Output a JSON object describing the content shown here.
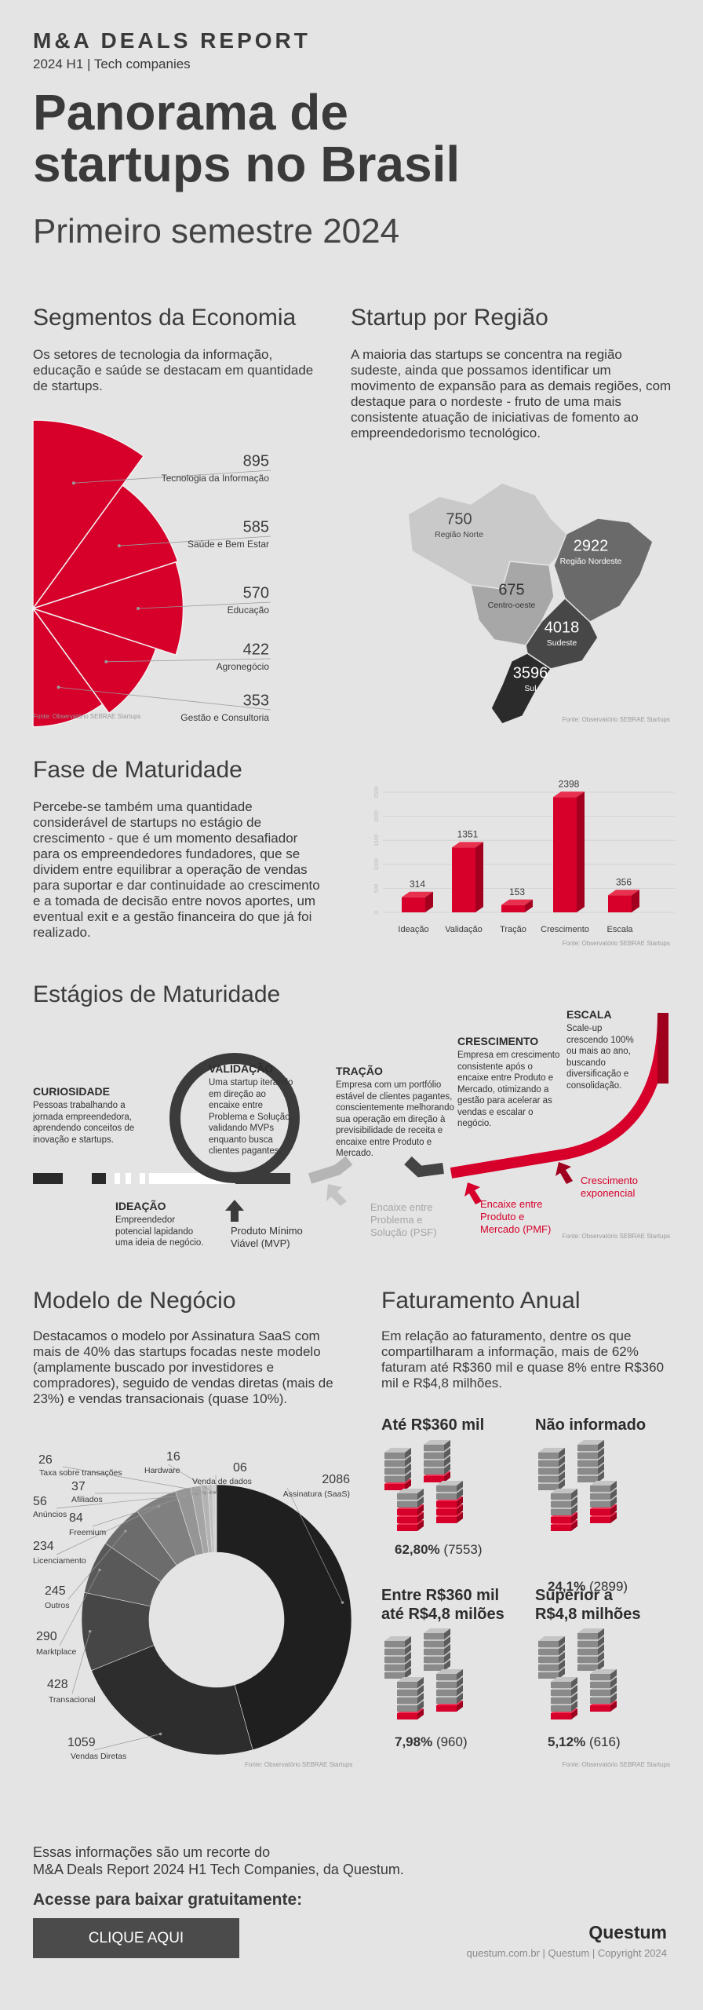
{
  "header": {
    "kicker": "M&A DEALS REPORT",
    "edition": "2024 H1 | Tech companies",
    "title_lines": [
      "Panorama de",
      "startups no Brasil"
    ],
    "subtitle": "Primeiro semestre 2024"
  },
  "chart_data": [
    {
      "type": "rose",
      "title": "Segmentos da Economia",
      "subtitle": "Os setores de tecnologia da informação, educação e saúde se destacam em quantidade de startups.",
      "categories": [
        "Tecnologia da Informação",
        "Saúde e Bem Estar",
        "Educação",
        "Agronegócio",
        "Gestão e Consultoria"
      ],
      "values": [
        895,
        585,
        570,
        422,
        353
      ],
      "color": "#d6002a",
      "source": "Fonte: Observatório SEBRAE Startups"
    },
    {
      "type": "bar",
      "title": "Fase de Maturidade",
      "subtitle": "Percebe-se também uma quantidade considerável de startups no estágio de crescimento - que é um momento desafiador para os empreendedores fundadores, que se dividem entre equilibrar a operação de vendas para suportar e dar continuidade ao crescimento e a tomada de decisão entre novos aportes, um eventual exit e a gestão financeira do que já foi realizado.",
      "categories": [
        "Ideação",
        "Validação",
        "Tração",
        "Crescimento",
        "Escala"
      ],
      "values": [
        314,
        1351,
        153,
        2398,
        356
      ],
      "color": "#d6002a",
      "ylim": [
        0,
        2500
      ],
      "yticks": [
        0,
        500,
        1000,
        1500,
        2000,
        2500
      ],
      "grid": true,
      "source": "Fonte: Observatório SEBRAE Startups"
    },
    {
      "type": "donut",
      "title": "Modelo de Negócio",
      "subtitle": "Destacamos o modelo por Assinatura SaaS com mais de 40% das startups focadas neste modelo (amplamente buscado por investidores e compradores), seguido de vendas diretas (mais de 23%) e vendas transacionais (quase 10%).",
      "categories": [
        "Assinatura (SaaS)",
        "Vendas Diretas",
        "Transacional",
        "Marktplace",
        "Outros",
        "Licenciamento",
        "Freemium",
        "Anúncios",
        "Afiliados",
        "Taxa sobre transações",
        "Hardware",
        "Venda de dados"
      ],
      "values": [
        2086,
        1059,
        428,
        290,
        245,
        234,
        84,
        56,
        37,
        26,
        16,
        6
      ],
      "value_labels": [
        "2086",
        "1059",
        "428",
        "290",
        "245",
        "234",
        "84",
        "56",
        "37",
        "26",
        "16",
        "06"
      ],
      "colors": [
        "#1f1f1f",
        "#2d2d2d",
        "#464646",
        "#595959",
        "#6c6c6c",
        "#808080",
        "#959595",
        "#a5a5a5",
        "#b3b3b3",
        "#c1c1c1",
        "#cdcdcd",
        "#d8d8d8"
      ],
      "source": "Fonte: Observatório SEBRAE Startups"
    }
  ],
  "regions": {
    "title": "Startup por Região",
    "text": "A maioria das startups se concentra na região sudeste, ainda que possamos identificar um movimento de expansão para as demais regiões, com destaque para o nordeste - fruto de uma mais consistente atuação de iniciativas de fomento ao empreendedorismo tecnológico.",
    "items": [
      {
        "name": "Região Norte",
        "value": 750
      },
      {
        "name": "Centro-oeste",
        "value": 675
      },
      {
        "name": "Região Nordeste",
        "value": 2922
      },
      {
        "name": "Sudeste",
        "value": 4018
      },
      {
        "name": "Sul",
        "value": 3596
      }
    ],
    "source": "Fonte: Observatório SEBRAE Startups"
  },
  "stages": {
    "title": "Estágios de Maturidade",
    "items": [
      {
        "title": "CURIOSIDADE",
        "text": "Pessoas trabalhando a jornada empreendedora, aprendendo conceitos de inovação e startups."
      },
      {
        "title": "IDEAÇÃO",
        "text": "Empreendedor potencial lapidando uma ideia de negócio."
      },
      {
        "title": "VALIDAÇÃO",
        "text": "Uma startup iterando em direção ao encaixe entre Problema e Solução, validando MVPs enquanto busca clientes pagantes."
      },
      {
        "title": "TRAÇÃO",
        "text": "Empresa com um portfólio estável de clientes pagantes, conscientemente melhorando sua operação em direção à previsibilidade de receita e encaixe entre Produto e Mercado."
      },
      {
        "title": "CRESCIMENTO",
        "text": "Empresa em crescimento consistente após o encaixe entre Produto e Mercado, otimizando a gestão para acelerar as vendas e escalar o negócio."
      },
      {
        "title": "ESCALA",
        "text": "Scale-up crescendo 100% ou mais ao ano, buscando diversificação e consolidação."
      }
    ],
    "milestones": [
      "Produto Mínimo Viável (MVP)",
      "Encaixe entre Problema e Solução (PSF)",
      "Encaixe entre Produto e Mercado (PMF)",
      "Crescimento exponencial"
    ],
    "source": "Fonte: Observatório SEBRAE Startups"
  },
  "revenue": {
    "title": "Faturamento Anual",
    "text": "Em relação ao faturamento, dentre os que compartilharam a informação, mais de 62% faturam até R$360 mil e quase 8% entre R$360 mil e R$4,8 milhões.",
    "groups": [
      {
        "label": [
          "Até R$360 mil"
        ],
        "share": "62,80%",
        "count": "(7553)"
      },
      {
        "label": [
          "Não informado"
        ],
        "share": "24,1%",
        "count": "(2899)"
      },
      {
        "label": [
          "Entre R$360 mil",
          "até R$4,8 milões"
        ],
        "share": "7,98%",
        "count": "(960)"
      },
      {
        "label": [
          "Superior a",
          "R$4,8 milhões"
        ],
        "share": "5,12%",
        "count": "(616)"
      }
    ],
    "source": "Fonte: Observatório SEBRAE Startups"
  },
  "footer": {
    "note_lines": [
      "Essas informações são um recorte do",
      "M&A Deals Report 2024 H1 Tech Companies, da Questum."
    ],
    "cta": "Acesse para baixar gratuitamente:",
    "button": "CLIQUE AQUI",
    "logo": "Questum",
    "copyright": "questum.com.br | Questum | Copyright 2024"
  }
}
